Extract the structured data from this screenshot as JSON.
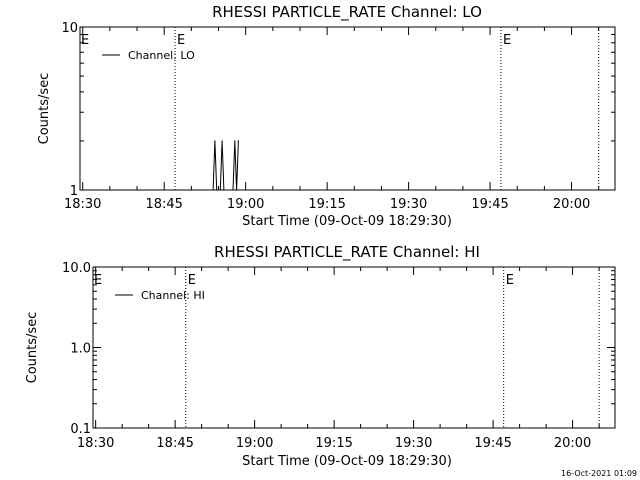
{
  "chart_data": [
    {
      "type": "line",
      "title": "RHESSI PARTICLE_RATE Channel: LO",
      "xlabel": "Start Time (09-Oct-09 18:29:30)",
      "ylabel": "Counts/sec",
      "y_scale": "log",
      "ylim": [
        1,
        10
      ],
      "y_ticks": [
        {
          "value": 1,
          "label": "1"
        },
        {
          "value": 10,
          "label": "10"
        }
      ],
      "xlim": [
        "18:29:30",
        "20:08:00"
      ],
      "x_ticks": [
        "18:30",
        "18:45",
        "19:00",
        "19:15",
        "19:30",
        "19:45",
        "20:00"
      ],
      "grid": false,
      "legend_position": "top-left",
      "series": [
        {
          "name": "Channel: LO",
          "x": [
            "18:54:00",
            "18:54:20",
            "18:54:40",
            "18:55:20",
            "18:55:40",
            "18:56:00",
            "18:57:40",
            "18:58:00",
            "18:58:20",
            "18:58:40"
          ],
          "y": [
            1.0,
            2.0,
            1.0,
            1.0,
            2.0,
            1.0,
            1.0,
            2.0,
            1.0,
            2.0
          ]
        }
      ],
      "markers": [
        {
          "time": "18:47:00",
          "label": "E"
        },
        {
          "time": "19:47:00",
          "label": "E"
        },
        {
          "time": "20:05:00",
          "label": ""
        }
      ]
    },
    {
      "type": "line",
      "title": "RHESSI PARTICLE_RATE Channel: HI",
      "xlabel": "Start Time (09-Oct-09 18:29:30)",
      "ylabel": "Counts/sec",
      "y_scale": "log",
      "ylim": [
        0.1,
        10
      ],
      "y_ticks": [
        {
          "value": 0.1,
          "label": "0.1"
        },
        {
          "value": 1,
          "label": "1.0"
        },
        {
          "value": 10,
          "label": "10.0"
        }
      ],
      "xlim": [
        "18:29:30",
        "20:08:00"
      ],
      "x_ticks": [
        "18:30",
        "18:45",
        "19:00",
        "19:15",
        "19:30",
        "19:45",
        "20:00"
      ],
      "grid": false,
      "legend_position": "top-left",
      "series": [
        {
          "name": "Channel: HI",
          "x": [],
          "y": []
        }
      ],
      "markers": [
        {
          "time": "18:47:00",
          "label": "E"
        },
        {
          "time": "19:47:00",
          "label": "E"
        },
        {
          "time": "20:05:00",
          "label": ""
        }
      ]
    }
  ],
  "footer": {
    "timestamp": "16-Oct-2021 01:09"
  }
}
